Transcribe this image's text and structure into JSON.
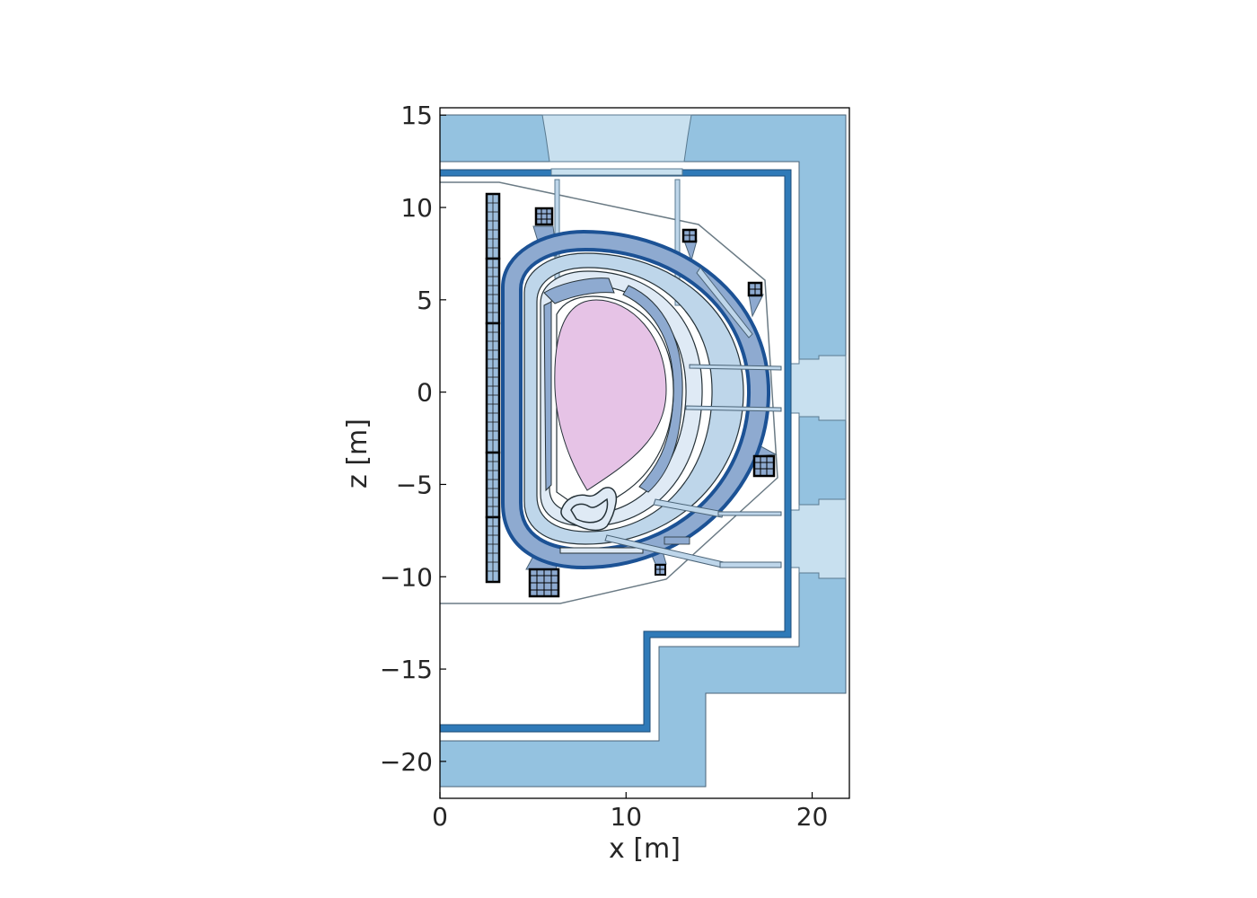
{
  "chart_data": {
    "type": "diagram",
    "xlabel": "x [m]",
    "ylabel": "z [m]",
    "xlim": [
      0,
      22
    ],
    "ylim": [
      -22,
      15.4
    ],
    "xticks": [
      0,
      10,
      20
    ],
    "yticks": [
      15,
      10,
      5,
      0,
      -5,
      -10,
      -15,
      -20
    ],
    "xtick_labels": [
      "0",
      "10",
      "20"
    ],
    "ytick_labels": [
      "15",
      "10",
      "5",
      "0",
      "−5",
      "−10",
      "−15",
      "−20"
    ],
    "grid": false,
    "tick_direction": "in",
    "colors": {
      "plasma": "#e6c3e6",
      "cryostat": "#94c2e0",
      "port_plug": "#c8e0ef",
      "thermal_shield": "#2f7ab8",
      "vacuum_vessel": "#1c5295",
      "vessel_fill": "#8eaad0",
      "blanket": "#bed6ea",
      "first_wall": "#dfeaf5",
      "coil": "#9bbcdb",
      "outline": "#263238"
    }
  }
}
